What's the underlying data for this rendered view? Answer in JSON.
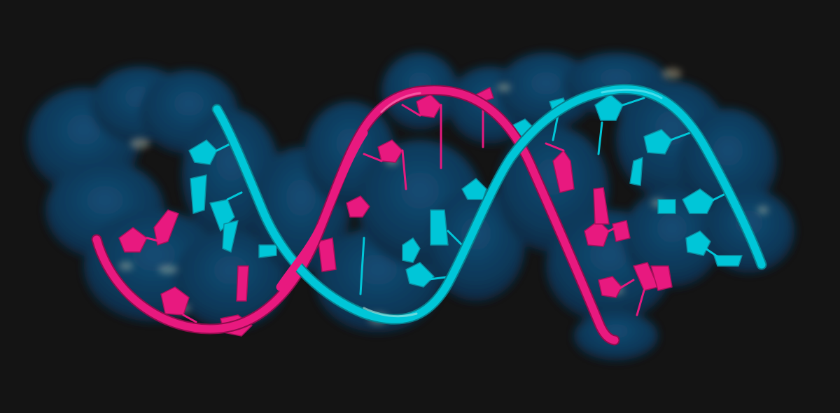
{
  "scene": {
    "subject": "dna-double-helix",
    "colors": {
      "background": "#141414",
      "surface": "#0d3a5c",
      "surface_dark": "#0a2a44",
      "strand_a": "#00c6d8",
      "strand_b": "#e8197f",
      "highlight": "#f2e7c0"
    }
  }
}
